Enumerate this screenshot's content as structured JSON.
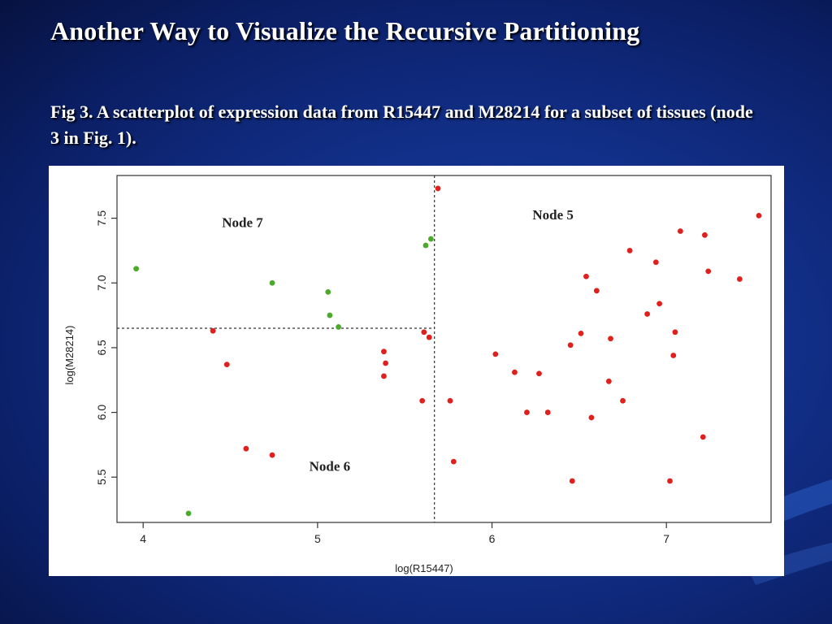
{
  "slide": {
    "title": "Another Way to Visualize the Recursive Partitioning",
    "caption": "Fig 3. A scatterplot of expression data from R15447 and M28214 for a subset of tissues (node 3 in Fig. 1).",
    "background_color": "#12308a"
  },
  "chart_data": {
    "type": "scatter",
    "xlabel": "log(R15447)",
    "ylabel": "log(M28214)",
    "xlim": [
      3.85,
      7.6
    ],
    "ylim": [
      5.15,
      7.83
    ],
    "x_ticks": [
      "4",
      "5",
      "6",
      "7"
    ],
    "y_ticks": [
      "5.5",
      "6.0",
      "6.5",
      "7.0",
      "7.5"
    ],
    "grid": false,
    "splits": {
      "vertical_x": 5.67,
      "horizontal_y": 6.65,
      "horizontal_x_max": 5.67
    },
    "annotations": [
      {
        "text": "Node 7",
        "x": 4.57,
        "y": 7.43
      },
      {
        "text": "Node 5",
        "x": 6.35,
        "y": 7.49
      },
      {
        "text": "Node 6",
        "x": 5.07,
        "y": 5.55
      }
    ],
    "series": [
      {
        "color": "#4caa2b",
        "points": [
          [
            3.96,
            7.11
          ],
          [
            4.74,
            7.0
          ],
          [
            5.06,
            6.93
          ],
          [
            5.07,
            6.75
          ],
          [
            5.12,
            6.66
          ],
          [
            5.62,
            7.29
          ],
          [
            5.65,
            7.34
          ],
          [
            4.26,
            5.22
          ]
        ]
      },
      {
        "color": "#e0201c",
        "points": [
          [
            5.69,
            7.73
          ],
          [
            4.4,
            6.63
          ],
          [
            4.48,
            6.37
          ],
          [
            4.59,
            5.72
          ],
          [
            4.74,
            5.67
          ],
          [
            5.38,
            6.47
          ],
          [
            5.39,
            6.38
          ],
          [
            5.38,
            6.28
          ],
          [
            5.61,
            6.62
          ],
          [
            5.64,
            6.58
          ],
          [
            5.6,
            6.09
          ],
          [
            5.76,
            6.09
          ],
          [
            5.78,
            5.62
          ],
          [
            6.02,
            6.45
          ],
          [
            6.13,
            6.31
          ],
          [
            6.2,
            6.0
          ],
          [
            6.27,
            6.3
          ],
          [
            6.32,
            6.0
          ],
          [
            6.45,
            6.52
          ],
          [
            6.46,
            5.47
          ],
          [
            6.51,
            6.61
          ],
          [
            6.54,
            7.05
          ],
          [
            6.57,
            5.96
          ],
          [
            6.6,
            6.94
          ],
          [
            6.67,
            6.24
          ],
          [
            6.68,
            6.57
          ],
          [
            6.75,
            6.09
          ],
          [
            6.79,
            7.25
          ],
          [
            6.89,
            6.76
          ],
          [
            6.94,
            7.16
          ],
          [
            6.96,
            6.84
          ],
          [
            7.02,
            5.47
          ],
          [
            7.04,
            6.44
          ],
          [
            7.05,
            6.62
          ],
          [
            7.08,
            7.4
          ],
          [
            7.21,
            5.81
          ],
          [
            7.22,
            7.37
          ],
          [
            7.24,
            7.09
          ],
          [
            7.42,
            7.03
          ],
          [
            7.53,
            7.52
          ]
        ]
      }
    ]
  }
}
